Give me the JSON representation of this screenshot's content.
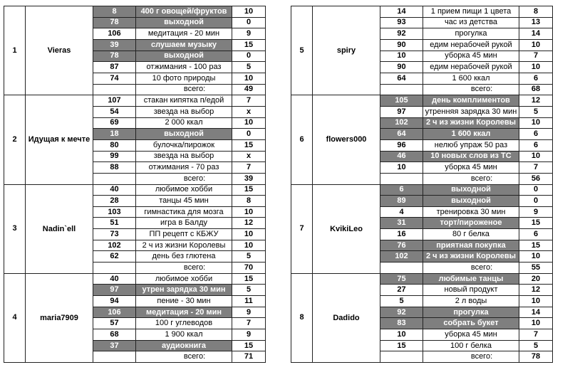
{
  "total_label": "всего:",
  "colors": {
    "points": "#d11a1a",
    "total": "#2e9a3c",
    "name": "#1f5f96",
    "highlight_row": "#7f7f7f"
  },
  "columns": [
    {
      "participants": [
        {
          "rank": "1",
          "name": "Vieras",
          "rows": [
            {
              "num": "8",
              "task": "400 г овощей/фруктов",
              "points": "10",
              "gray": true
            },
            {
              "num": "78",
              "task": "выходной",
              "points": "0",
              "gray": true
            },
            {
              "num": "106",
              "task": "медитация - 20 мин",
              "points": "9",
              "gray": false
            },
            {
              "num": "39",
              "task": "слушаем музыку",
              "points": "15",
              "gray": true
            },
            {
              "num": "78",
              "task": "выходной",
              "points": "0",
              "gray": true
            },
            {
              "num": "87",
              "task": "отжимания - 100 раз",
              "points": "5",
              "gray": false
            },
            {
              "num": "74",
              "task": "10 фото природы",
              "points": "10",
              "gray": false
            }
          ],
          "total": "49"
        },
        {
          "rank": "2",
          "name": "Идущая к мечте",
          "rows": [
            {
              "num": "107",
              "task": "стакан кипятка п/едой",
              "points": "7",
              "gray": false
            },
            {
              "num": "54",
              "task": "звезда на выбор",
              "points": "x",
              "gray": false
            },
            {
              "num": "69",
              "task": "2 000 ккал",
              "points": "10",
              "gray": false
            },
            {
              "num": "18",
              "task": "выходной",
              "points": "0",
              "gray": true
            },
            {
              "num": "80",
              "task": "булочка/пирожок",
              "points": "15",
              "gray": false
            },
            {
              "num": "99",
              "task": "звезда на выбор",
              "points": "x",
              "gray": false
            },
            {
              "num": "88",
              "task": "отжимания - 70 раз",
              "points": "7",
              "gray": false
            }
          ],
          "total": "39"
        },
        {
          "rank": "3",
          "name": "Nadin`ell",
          "rows": [
            {
              "num": "40",
              "task": "любимое хобби",
              "points": "15",
              "gray": false
            },
            {
              "num": "28",
              "task": "танцы 45 мин",
              "points": "8",
              "gray": false
            },
            {
              "num": "103",
              "task": "гимнастика для мозга",
              "points": "10",
              "gray": false
            },
            {
              "num": "51",
              "task": "игра в Балду",
              "points": "12",
              "gray": false
            },
            {
              "num": "73",
              "task": "ПП рецепт с КБЖУ",
              "points": "10",
              "gray": false
            },
            {
              "num": "102",
              "task": "2 ч из жизни Королевы",
              "points": "10",
              "gray": false
            },
            {
              "num": "62",
              "task": "день без глютена",
              "points": "5",
              "gray": false
            }
          ],
          "total": "70"
        },
        {
          "rank": "4",
          "name": "maria7909",
          "rows": [
            {
              "num": "40",
              "task": "любимое хобби",
              "points": "15",
              "gray": false
            },
            {
              "num": "97",
              "task": "утрен зарядка 30 мин",
              "points": "5",
              "gray": true
            },
            {
              "num": "94",
              "task": "пение - 30 мин",
              "points": "11",
              "gray": false
            },
            {
              "num": "106",
              "task": "медитация - 20 мин",
              "points": "9",
              "gray": true
            },
            {
              "num": "57",
              "task": "100 г углеводов",
              "points": "7",
              "gray": false
            },
            {
              "num": "68",
              "task": "1 900 ккал",
              "points": "9",
              "gray": false
            },
            {
              "num": "37",
              "task": "аудиокнига",
              "points": "15",
              "gray": true
            }
          ],
          "total": "71"
        }
      ]
    },
    {
      "participants": [
        {
          "rank": "5",
          "name": "spiry",
          "rows": [
            {
              "num": "14",
              "task": "1 прием пищи 1 цвета",
              "points": "8",
              "gray": false
            },
            {
              "num": "93",
              "task": "час из детства",
              "points": "13",
              "gray": false
            },
            {
              "num": "92",
              "task": "прогулка",
              "points": "14",
              "gray": false
            },
            {
              "num": "90",
              "task": "едим нерабочей рукой",
              "points": "10",
              "gray": false
            },
            {
              "num": "10",
              "task": "уборка 45 мин",
              "points": "7",
              "gray": false
            },
            {
              "num": "90",
              "task": "едим нерабочей рукой",
              "points": "10",
              "gray": false
            },
            {
              "num": "64",
              "task": "1 600 ккал",
              "points": "6",
              "gray": false
            }
          ],
          "total": "68"
        },
        {
          "rank": "6",
          "name": "flowers000",
          "rows": [
            {
              "num": "105",
              "task": "день комплиментов",
              "points": "12",
              "gray": true
            },
            {
              "num": "97",
              "task": "утренняя зарядка 30 мин",
              "points": "5",
              "gray": false
            },
            {
              "num": "102",
              "task": "2 ч из жизни Королевы",
              "points": "10",
              "gray": true
            },
            {
              "num": "64",
              "task": "1 600 ккал",
              "points": "6",
              "gray": true
            },
            {
              "num": "96",
              "task": "нелюб упраж 50 раз",
              "points": "6",
              "gray": false
            },
            {
              "num": "46",
              "task": "10 новых слов из ТС",
              "points": "10",
              "gray": true
            },
            {
              "num": "10",
              "task": "уборка 45 мин",
              "points": "7",
              "gray": false
            }
          ],
          "total": "56"
        },
        {
          "rank": "7",
          "name": "KvikiLeo",
          "rows": [
            {
              "num": "6",
              "task": "выходной",
              "points": "0",
              "gray": true
            },
            {
              "num": "89",
              "task": "выходной",
              "points": "0",
              "gray": true
            },
            {
              "num": "4",
              "task": "тренировка 30 мин",
              "points": "9",
              "gray": false
            },
            {
              "num": "31",
              "task": "торт/пироженое",
              "points": "15",
              "gray": true
            },
            {
              "num": "16",
              "task": "80 г белка",
              "points": "6",
              "gray": false
            },
            {
              "num": "76",
              "task": "приятная покупка",
              "points": "15",
              "gray": true
            },
            {
              "num": "102",
              "task": "2 ч из жизни Королевы",
              "points": "10",
              "gray": true
            }
          ],
          "total": "55"
        },
        {
          "rank": "8",
          "name": "Dadido",
          "rows": [
            {
              "num": "75",
              "task": "любимые танцы",
              "points": "20",
              "gray": true
            },
            {
              "num": "27",
              "task": "новый продукт",
              "points": "12",
              "gray": false
            },
            {
              "num": "5",
              "task": "2 л воды",
              "points": "10",
              "gray": false
            },
            {
              "num": "92",
              "task": "прогулка",
              "points": "14",
              "gray": true
            },
            {
              "num": "83",
              "task": "собрать букет",
              "points": "10",
              "gray": true
            },
            {
              "num": "10",
              "task": "уборка 45 мин",
              "points": "7",
              "gray": false
            },
            {
              "num": "15",
              "task": "100 г белка",
              "points": "5",
              "gray": false
            }
          ],
          "total": "78"
        }
      ]
    }
  ]
}
